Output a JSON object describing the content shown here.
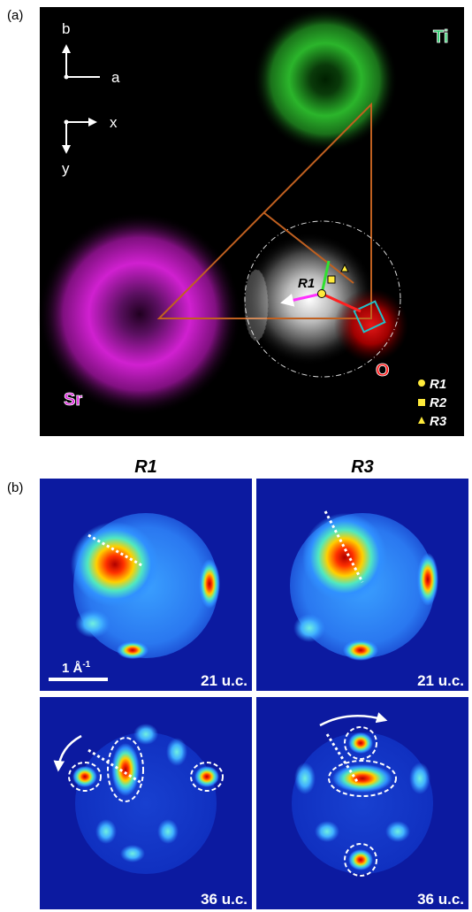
{
  "panel_a": {
    "label": "(a)",
    "axis_b": "b",
    "axis_a": "a",
    "axis_x": "x",
    "axis_y": "y",
    "atom_ti": "Ti",
    "atom_sr": "Sr",
    "atom_o": "O",
    "probe_label": "R1",
    "legend": [
      "R1",
      "R2",
      "R3"
    ]
  },
  "panel_b": {
    "label": "(b)",
    "columns": [
      "R1",
      "R3"
    ],
    "scale_bar": {
      "text": "1 Å",
      "exponent": "-1"
    },
    "images": [
      {
        "thickness": "21 u.c."
      },
      {
        "thickness": "21 u.c."
      },
      {
        "thickness": "36 u.c."
      },
      {
        "thickness": "36 u.c."
      }
    ]
  }
}
